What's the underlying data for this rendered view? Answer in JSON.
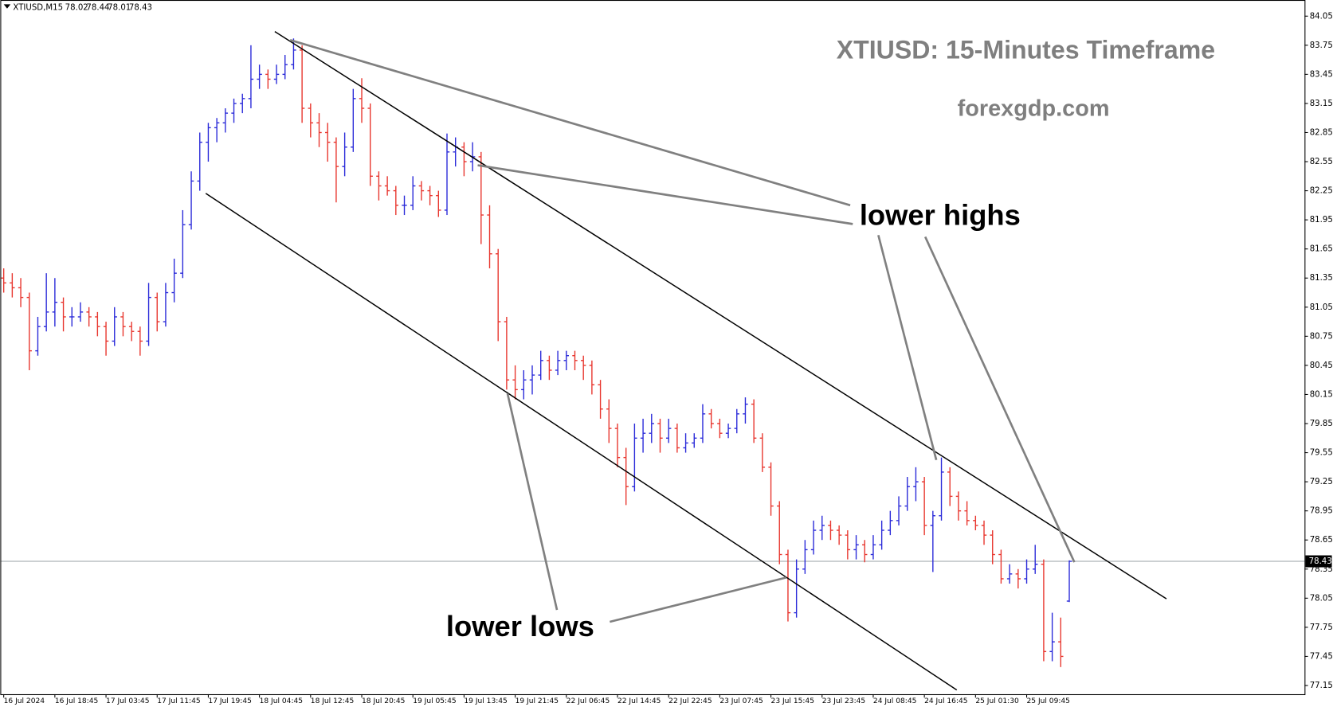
{
  "chart_data": {
    "type": "ohlc",
    "symbol": "XTIUSD,M15",
    "title": "XTIUSD: 15-Minutes Timeframe",
    "subtitle": "forexgdp.com",
    "annotations": [
      "lower highs",
      "lower lows"
    ],
    "up_color": "#2b2bd9",
    "down_color": "#e8362e",
    "xlim": [
      -0.4,
      152.6
    ],
    "ylim": [
      84.19,
      77.06
    ],
    "xticks": [
      {
        "value": 0,
        "label": "16 Jul 2024"
      },
      {
        "value": 6,
        "label": "16 Jul 18:45"
      },
      {
        "value": 12,
        "label": "17 Jul 03:45"
      },
      {
        "value": 18,
        "label": "17 Jul 11:45"
      },
      {
        "value": 24,
        "label": "17 Jul 19:45"
      },
      {
        "value": 30,
        "label": "18 Jul 04:45"
      },
      {
        "value": 36,
        "label": "18 Jul 12:45"
      },
      {
        "value": 42,
        "label": "18 Jul 20:45"
      },
      {
        "value": 48,
        "label": "19 Jul 05:45"
      },
      {
        "value": 54,
        "label": "19 Jul 13:45"
      },
      {
        "value": 60,
        "label": "19 Jul 21:45"
      },
      {
        "value": 66,
        "label": "22 Jul 06:45"
      },
      {
        "value": 72,
        "label": "22 Jul 14:45"
      },
      {
        "value": 78,
        "label": "22 Jul 22:45"
      },
      {
        "value": 84,
        "label": "23 Jul 07:45"
      },
      {
        "value": 90,
        "label": "23 Jul 15:45"
      },
      {
        "value": 96,
        "label": "23 Jul 23:45"
      },
      {
        "value": 102,
        "label": "24 Jul 08:45"
      },
      {
        "value": 108,
        "label": "24 Jul 16:45"
      },
      {
        "value": 114,
        "label": "25 Jul 01:30"
      },
      {
        "value": 120,
        "label": "25 Jul 09:45"
      }
    ],
    "yticks": [
      84.05,
      83.75,
      83.45,
      83.15,
      82.85,
      82.55,
      82.25,
      81.95,
      81.65,
      81.35,
      81.05,
      80.75,
      80.45,
      80.15,
      79.85,
      79.55,
      79.25,
      78.95,
      78.65,
      78.35,
      78.05,
      77.75,
      77.45,
      77.15
    ],
    "values": [
      [
        81.35,
        81.45,
        81.2,
        81.3
      ],
      [
        81.3,
        81.4,
        81.15,
        81.25
      ],
      [
        81.25,
        81.35,
        81.05,
        81.15
      ],
      [
        81.15,
        81.2,
        80.4,
        80.6
      ],
      [
        80.6,
        80.95,
        80.55,
        80.85
      ],
      [
        80.85,
        81.4,
        80.8,
        81.0
      ],
      [
        81.0,
        81.35,
        80.85,
        81.1
      ],
      [
        81.1,
        81.15,
        80.8,
        80.95
      ],
      [
        80.95,
        81.05,
        80.85,
        80.95
      ],
      [
        80.95,
        81.1,
        80.9,
        81.0
      ],
      [
        81.0,
        81.05,
        80.85,
        80.95
      ],
      [
        80.95,
        81.0,
        80.75,
        80.85
      ],
      [
        80.85,
        80.9,
        80.55,
        80.7
      ],
      [
        80.7,
        81.05,
        80.65,
        80.95
      ],
      [
        80.95,
        81.0,
        80.75,
        80.85
      ],
      [
        80.85,
        80.9,
        80.7,
        80.8
      ],
      [
        80.8,
        80.85,
        80.55,
        80.7
      ],
      [
        80.7,
        81.3,
        80.65,
        81.15
      ],
      [
        81.15,
        81.2,
        80.8,
        80.9
      ],
      [
        80.9,
        81.3,
        80.85,
        81.2
      ],
      [
        81.2,
        81.55,
        81.1,
        81.4
      ],
      [
        81.4,
        82.05,
        81.35,
        81.9
      ],
      [
        81.9,
        82.45,
        81.85,
        82.35
      ],
      [
        82.35,
        82.85,
        82.25,
        82.75
      ],
      [
        82.75,
        82.95,
        82.55,
        82.9
      ],
      [
        82.9,
        83.0,
        82.75,
        82.95
      ],
      [
        82.95,
        83.1,
        82.85,
        83.05
      ],
      [
        83.05,
        83.2,
        82.95,
        83.15
      ],
      [
        83.15,
        83.25,
        83.05,
        83.2
      ],
      [
        83.2,
        83.75,
        83.1,
        83.4
      ],
      [
        83.4,
        83.55,
        83.3,
        83.45
      ],
      [
        83.45,
        83.5,
        83.3,
        83.4
      ],
      [
        83.4,
        83.55,
        83.35,
        83.45
      ],
      [
        83.45,
        83.65,
        83.4,
        83.55
      ],
      [
        83.55,
        83.82,
        83.5,
        83.7
      ],
      [
        83.7,
        83.75,
        82.95,
        83.1
      ],
      [
        83.1,
        83.15,
        82.8,
        82.95
      ],
      [
        82.95,
        83.05,
        82.7,
        82.85
      ],
      [
        82.85,
        82.95,
        82.55,
        82.75
      ],
      [
        82.75,
        82.8,
        82.13,
        82.5
      ],
      [
        82.5,
        82.85,
        82.4,
        82.7
      ],
      [
        82.7,
        83.3,
        82.65,
        83.2
      ],
      [
        83.2,
        83.41,
        82.95,
        83.1
      ],
      [
        83.1,
        83.15,
        82.3,
        82.4
      ],
      [
        82.4,
        82.45,
        82.15,
        82.3
      ],
      [
        82.3,
        82.4,
        82.2,
        82.25
      ],
      [
        82.25,
        82.3,
        82.0,
        82.1
      ],
      [
        82.1,
        82.2,
        82.0,
        82.1
      ],
      [
        82.1,
        82.4,
        82.05,
        82.3
      ],
      [
        82.3,
        82.35,
        82.15,
        82.25
      ],
      [
        82.25,
        82.3,
        82.1,
        82.2
      ],
      [
        82.2,
        82.25,
        81.98,
        82.05
      ],
      [
        82.05,
        82.84,
        82.0,
        82.65
      ],
      [
        82.65,
        82.8,
        82.5,
        82.7
      ],
      [
        82.7,
        82.75,
        82.4,
        82.55
      ],
      [
        82.55,
        82.75,
        82.45,
        82.6
      ],
      [
        82.6,
        82.65,
        81.7,
        82.0
      ],
      [
        82.0,
        82.1,
        81.45,
        81.6
      ],
      [
        81.6,
        81.65,
        80.7,
        80.9
      ],
      [
        80.9,
        80.95,
        80.2,
        80.3
      ],
      [
        80.3,
        80.45,
        80.1,
        80.2
      ],
      [
        80.2,
        80.4,
        80.1,
        80.3
      ],
      [
        80.3,
        80.45,
        80.15,
        80.35
      ],
      [
        80.35,
        80.6,
        80.3,
        80.5
      ],
      [
        80.5,
        80.55,
        80.3,
        80.4
      ],
      [
        80.4,
        80.6,
        80.35,
        80.5
      ],
      [
        80.5,
        80.6,
        80.4,
        80.55
      ],
      [
        80.55,
        80.6,
        80.4,
        80.5
      ],
      [
        80.5,
        80.55,
        80.3,
        80.45
      ],
      [
        80.45,
        80.5,
        80.15,
        80.25
      ],
      [
        80.25,
        80.3,
        79.9,
        80.0
      ],
      [
        80.0,
        80.1,
        79.65,
        79.8
      ],
      [
        79.8,
        79.85,
        79.4,
        79.5
      ],
      [
        79.5,
        79.6,
        79.01,
        79.2
      ],
      [
        79.2,
        79.85,
        79.15,
        79.7
      ],
      [
        79.7,
        79.9,
        79.55,
        79.75
      ],
      [
        79.75,
        79.95,
        79.65,
        79.85
      ],
      [
        79.85,
        79.9,
        79.55,
        79.7
      ],
      [
        79.7,
        79.9,
        79.65,
        79.8
      ],
      [
        79.8,
        79.85,
        79.55,
        79.6
      ],
      [
        79.6,
        79.75,
        79.55,
        79.65
      ],
      [
        79.65,
        79.75,
        79.6,
        79.7
      ],
      [
        79.7,
        80.05,
        79.65,
        79.95
      ],
      [
        79.95,
        80.0,
        79.8,
        79.85
      ],
      [
        79.85,
        79.9,
        79.7,
        79.75
      ],
      [
        79.75,
        79.85,
        79.7,
        79.8
      ],
      [
        79.8,
        80.0,
        79.75,
        79.95
      ],
      [
        79.95,
        80.12,
        79.85,
        80.05
      ],
      [
        80.05,
        80.1,
        79.65,
        79.7
      ],
      [
        79.7,
        79.75,
        79.35,
        79.4
      ],
      [
        79.4,
        79.45,
        78.9,
        79.0
      ],
      [
        79.0,
        79.05,
        78.4,
        78.5
      ],
      [
        78.5,
        78.55,
        77.81,
        77.9
      ],
      [
        77.9,
        78.45,
        77.85,
        78.35
      ],
      [
        78.35,
        78.65,
        78.3,
        78.55
      ],
      [
        78.55,
        78.85,
        78.5,
        78.75
      ],
      [
        78.75,
        78.9,
        78.65,
        78.8
      ],
      [
        78.8,
        78.85,
        78.65,
        78.75
      ],
      [
        78.75,
        78.8,
        78.6,
        78.7
      ],
      [
        78.7,
        78.75,
        78.45,
        78.55
      ],
      [
        78.55,
        78.7,
        78.45,
        78.6
      ],
      [
        78.6,
        78.65,
        78.42,
        78.5
      ],
      [
        78.5,
        78.7,
        78.45,
        78.6
      ],
      [
        78.6,
        78.85,
        78.55,
        78.75
      ],
      [
        78.75,
        78.95,
        78.7,
        78.85
      ],
      [
        78.85,
        79.1,
        78.8,
        79.0
      ],
      [
        79.0,
        79.3,
        78.95,
        79.2
      ],
      [
        79.2,
        79.4,
        79.05,
        79.25
      ],
      [
        79.25,
        79.3,
        78.7,
        78.8
      ],
      [
        78.8,
        78.95,
        78.32,
        78.9
      ],
      [
        78.9,
        79.5,
        78.85,
        79.35
      ],
      [
        79.35,
        79.4,
        79.0,
        79.1
      ],
      [
        79.1,
        79.15,
        78.85,
        78.95
      ],
      [
        78.95,
        79.05,
        78.8,
        78.85
      ],
      [
        78.85,
        78.9,
        78.75,
        78.8
      ],
      [
        78.8,
        78.85,
        78.6,
        78.7
      ],
      [
        78.7,
        78.75,
        78.4,
        78.5
      ],
      [
        78.5,
        78.55,
        78.2,
        78.25
      ],
      [
        78.25,
        78.4,
        78.2,
        78.3
      ],
      [
        78.3,
        78.35,
        78.15,
        78.25
      ],
      [
        78.25,
        78.45,
        78.2,
        78.35
      ],
      [
        78.35,
        78.6,
        78.3,
        78.4
      ],
      [
        78.4,
        78.45,
        77.4,
        77.5
      ],
      [
        77.5,
        77.9,
        77.4,
        77.6
      ],
      [
        77.6,
        77.85,
        77.34,
        77.45
      ],
      [
        78.02,
        78.44,
        78.01,
        78.43
      ]
    ]
  }
}
